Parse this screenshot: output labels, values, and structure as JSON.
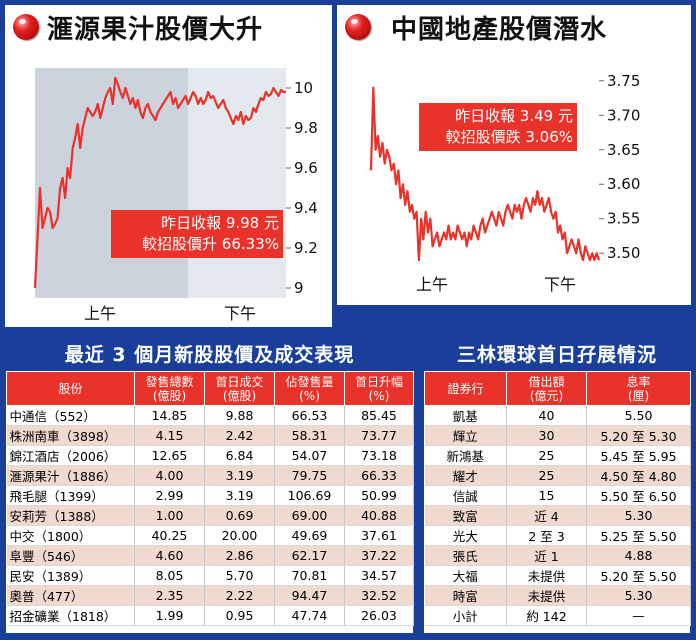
{
  "chart_data": [
    {
      "type": "line",
      "title": "滙源果汁股價大升",
      "session_labels": [
        "上午",
        "下午"
      ],
      "yticks": [
        9.0,
        9.2,
        9.4,
        9.6,
        9.8,
        10
      ],
      "ylim": [
        8.95,
        10.1
      ],
      "annotation": [
        "昨日收報 9.98 元",
        "較招股價升 66.33%"
      ],
      "colors": {
        "line": "#e8322a",
        "am_bg": "#ccd3dd",
        "pm_bg": "#e3e9ee",
        "annotation_bg": "#e8322a"
      },
      "x": [
        0,
        1,
        2,
        3,
        4,
        5,
        6,
        7,
        8,
        9,
        10,
        11,
        12,
        13,
        14,
        15,
        16,
        17,
        18,
        19,
        20,
        21,
        22,
        23,
        24,
        25,
        26,
        27,
        28,
        29,
        30,
        31,
        32,
        33,
        34,
        35,
        36,
        37,
        38,
        39,
        40,
        41,
        42,
        43,
        44,
        45,
        46,
        47,
        48,
        49,
        50,
        51,
        52,
        53,
        54,
        55,
        56,
        57,
        58,
        59,
        60,
        61,
        62,
        63,
        64,
        65,
        66,
        67,
        68,
        69,
        70,
        71,
        72,
        73,
        74,
        75,
        76,
        77,
        78,
        79,
        80,
        81,
        82,
        83,
        84,
        85,
        86,
        87,
        88,
        89,
        90,
        91,
        92,
        93,
        94,
        95,
        96,
        97,
        98,
        99,
        100
      ],
      "values": [
        9.0,
        9.25,
        9.5,
        9.3,
        9.35,
        9.4,
        9.38,
        9.3,
        9.32,
        9.35,
        9.5,
        9.55,
        9.45,
        9.6,
        9.55,
        9.7,
        9.75,
        9.82,
        9.7,
        9.8,
        9.85,
        9.9,
        9.88,
        9.86,
        9.88,
        9.92,
        9.85,
        9.9,
        9.95,
        9.98,
        10.0,
        9.92,
        10.05,
        10.02,
        9.98,
        9.95,
        10.0,
        9.96,
        9.92,
        9.95,
        9.9,
        9.94,
        9.88,
        9.85,
        9.9,
        9.92,
        9.88,
        9.86,
        9.84,
        9.88,
        9.9,
        9.92,
        9.94,
        9.96,
        9.98,
        9.92,
        9.95,
        9.9,
        9.92,
        9.94,
        9.96,
        9.92,
        9.95,
        9.98,
        9.96,
        9.92,
        9.95,
        9.92,
        9.94,
        9.98,
        9.95,
        9.96,
        9.93,
        9.9,
        9.92,
        9.94,
        9.9,
        9.88,
        9.85,
        9.82,
        9.86,
        9.84,
        9.88,
        9.82,
        9.86,
        9.84,
        9.85,
        9.9,
        9.88,
        9.92,
        9.95,
        9.94,
        9.98,
        9.96,
        9.97,
        10.0,
        9.98,
        9.96,
        9.99,
        9.98,
        9.98
      ]
    },
    {
      "type": "line",
      "title": "中國地產股價潛水",
      "session_labels": [
        "上午",
        "下午"
      ],
      "yticks": [
        3.5,
        3.55,
        3.6,
        3.65,
        3.7,
        3.75
      ],
      "ylim": [
        3.48,
        3.77
      ],
      "annotation": [
        "昨日收報 3.49 元",
        "較招股價跌 3.06%"
      ],
      "colors": {
        "line": "#e8322a",
        "annotation_bg": "#e8322a"
      },
      "x": [
        0,
        1,
        2,
        3,
        4,
        5,
        6,
        7,
        8,
        9,
        10,
        11,
        12,
        13,
        14,
        15,
        16,
        17,
        18,
        19,
        20,
        21,
        22,
        23,
        24,
        25,
        26,
        27,
        28,
        29,
        30,
        31,
        32,
        33,
        34,
        35,
        36,
        37,
        38,
        39,
        40,
        41,
        42,
        43,
        44,
        45,
        46,
        47,
        48,
        49,
        50,
        51,
        52,
        53,
        54,
        55,
        56,
        57,
        58,
        59,
        60,
        61,
        62,
        63,
        64,
        65,
        66,
        67,
        68,
        69,
        70,
        71,
        72,
        73,
        74,
        75,
        76,
        77,
        78,
        79,
        80,
        81,
        82,
        83,
        84,
        85,
        86,
        87,
        88,
        89,
        90,
        91,
        92,
        93,
        94,
        95,
        96,
        97,
        98,
        99,
        100
      ],
      "values": [
        3.62,
        3.74,
        3.65,
        3.67,
        3.64,
        3.66,
        3.63,
        3.65,
        3.64,
        3.62,
        3.63,
        3.6,
        3.62,
        3.58,
        3.6,
        3.57,
        3.59,
        3.56,
        3.57,
        3.55,
        3.56,
        3.49,
        3.55,
        3.52,
        3.56,
        3.53,
        3.55,
        3.51,
        3.52,
        3.53,
        3.51,
        3.52,
        3.53,
        3.52,
        3.54,
        3.52,
        3.53,
        3.52,
        3.54,
        3.53,
        3.52,
        3.53,
        3.51,
        3.53,
        3.52,
        3.54,
        3.53,
        3.52,
        3.54,
        3.55,
        3.53,
        3.54,
        3.55,
        3.56,
        3.55,
        3.54,
        3.56,
        3.55,
        3.54,
        3.56,
        3.57,
        3.56,
        3.55,
        3.57,
        3.56,
        3.57,
        3.55,
        3.57,
        3.58,
        3.57,
        3.56,
        3.58,
        3.57,
        3.59,
        3.57,
        3.58,
        3.56,
        3.57,
        3.58,
        3.56,
        3.55,
        3.56,
        3.53,
        3.54,
        3.52,
        3.53,
        3.5,
        3.51,
        3.52,
        3.51,
        3.5,
        3.52,
        3.5,
        3.49,
        3.51,
        3.5,
        3.49,
        3.5,
        3.49,
        3.5,
        3.49
      ]
    },
    {
      "type": "table",
      "title": "最近 3 個月新股股價及成交表現",
      "columns": [
        "股份",
        "發售總數(億股)",
        "首日成交(億股)",
        "佔發售量(%)",
        "首日升幅(%)"
      ],
      "rows": [
        [
          "中通信（552）",
          "14.85",
          "9.88",
          "66.53",
          "85.45"
        ],
        [
          "株洲南車（3898）",
          "4.15",
          "2.42",
          "58.31",
          "73.77"
        ],
        [
          "錦江酒店（2006）",
          "12.65",
          "6.84",
          "54.07",
          "73.18"
        ],
        [
          "滙源果汁（1886）",
          "4.00",
          "3.19",
          "79.75",
          "66.33"
        ],
        [
          "飛毛腿（1399）",
          "2.99",
          "3.19",
          "106.69",
          "50.99"
        ],
        [
          "安莉芳（1388）",
          "1.00",
          "0.69",
          "69.00",
          "40.88"
        ],
        [
          "中交（1800）",
          "40.25",
          "20.00",
          "49.69",
          "37.61"
        ],
        [
          "阜豐（546）",
          "4.60",
          "2.86",
          "62.17",
          "37.22"
        ],
        [
          "民安（1389）",
          "8.05",
          "5.70",
          "70.81",
          "34.57"
        ],
        [
          "奧普（477）",
          "2.35",
          "2.22",
          "94.47",
          "32.52"
        ],
        [
          "招金礦業（1818）",
          "1.99",
          "0.95",
          "47.74",
          "26.03"
        ]
      ]
    },
    {
      "type": "table",
      "title": "三林環球首日孖展情況",
      "columns": [
        "證券行",
        "借出額(億元)",
        "息率(厘)"
      ],
      "rows": [
        [
          "凱基",
          "40",
          "5.50"
        ],
        [
          "輝立",
          "30",
          "5.20 至 5.30"
        ],
        [
          "新鴻基",
          "25",
          "5.45 至 5.95"
        ],
        [
          "耀才",
          "25",
          "4.50 至 4.80"
        ],
        [
          "信誠",
          "15",
          "5.50 至 6.50"
        ],
        [
          "致富",
          "近 4",
          "5.30"
        ],
        [
          "光大",
          "2 至 3",
          "5.25 至 5.50"
        ],
        [
          "張氏",
          "近 1",
          "4.88"
        ],
        [
          "大福",
          "未提供",
          "5.20 至 5.50"
        ],
        [
          "時富",
          "未提供",
          "5.30"
        ],
        [
          "小計",
          "約 142",
          "—"
        ]
      ]
    }
  ]
}
